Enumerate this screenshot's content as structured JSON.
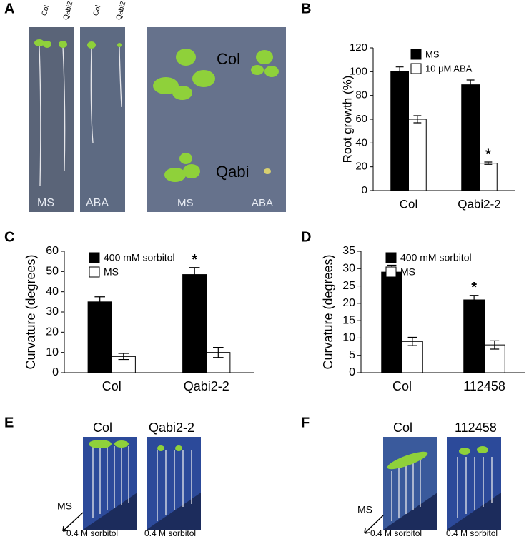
{
  "panel_a": {
    "panel_label": "A",
    "lane_labels": [
      "Col",
      "Qabi2-2",
      "Col",
      "Qabi2-2"
    ],
    "medium_labels": [
      "MS",
      "ABA",
      "MS",
      "ABA"
    ],
    "genotype_labels": [
      "Col",
      "Qabi"
    ]
  },
  "panel_e": {
    "panel_label": "E",
    "genotype_labels": [
      "Col",
      "Qabi2-2"
    ],
    "arrow_start": "MS",
    "treatment_labels": [
      "0.4 M sorbitol",
      "0.4 M sorbitol"
    ]
  },
  "panel_f": {
    "panel_label": "F",
    "genotype_labels": [
      "Col",
      "112458"
    ],
    "arrow_start": "MS",
    "treatment_labels": [
      "0.4 M sorbitol",
      "0.4 M sorbitol"
    ]
  },
  "chart_data": [
    {
      "type": "bar",
      "panel_label": "B",
      "ylabel": "Root growth (%)",
      "categories": [
        "Col",
        "Qabi2-2"
      ],
      "series": [
        {
          "name": "MS",
          "color": "#000000",
          "values": [
            100,
            89
          ],
          "errors": [
            4,
            4
          ],
          "significance": [
            null,
            null
          ]
        },
        {
          "name": "10 μM ABA",
          "color": "#ffffff",
          "values": [
            60,
            23
          ],
          "errors": [
            3,
            1
          ],
          "significance": [
            null,
            "*"
          ]
        }
      ],
      "ylim": [
        0,
        120
      ],
      "yticks": [
        0,
        20,
        40,
        60,
        80,
        100,
        120
      ],
      "legend": "upper right"
    },
    {
      "type": "bar",
      "panel_label": "C",
      "ylabel": "Curvature (degrees)",
      "categories": [
        "Col",
        "Qabi2-2"
      ],
      "series": [
        {
          "name": "400 mM sorbitol",
          "color": "#000000",
          "values": [
            35,
            48.5
          ],
          "errors": [
            2.5,
            3.5
          ],
          "significance": [
            null,
            "*"
          ]
        },
        {
          "name": "MS",
          "color": "#ffffff",
          "values": [
            8,
            10
          ],
          "errors": [
            1.5,
            2.5
          ],
          "significance": [
            null,
            null
          ]
        }
      ],
      "ylim": [
        0,
        60
      ],
      "yticks": [
        0,
        10,
        20,
        30,
        40,
        50,
        60
      ],
      "legend": "upper left"
    },
    {
      "type": "bar",
      "panel_label": "D",
      "ylabel": "Curvature (degrees)",
      "categories": [
        "Col",
        "112458"
      ],
      "series": [
        {
          "name": "400 mM sorbitol",
          "color": "#000000",
          "values": [
            29,
            21
          ],
          "errors": [
            2,
            1.3
          ],
          "significance": [
            null,
            "*"
          ]
        },
        {
          "name": "MS",
          "color": "#ffffff",
          "values": [
            9,
            8
          ],
          "errors": [
            1.2,
            1.2
          ],
          "significance": [
            null,
            null
          ]
        }
      ],
      "ylim": [
        0,
        35
      ],
      "yticks": [
        0,
        5,
        10,
        15,
        20,
        25,
        30,
        35
      ],
      "legend": "upper left"
    }
  ]
}
